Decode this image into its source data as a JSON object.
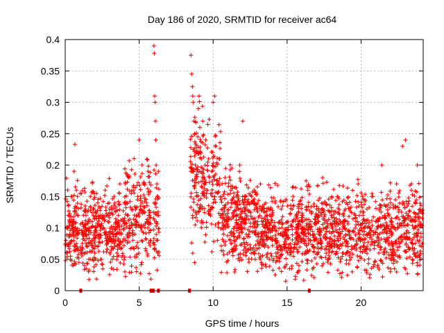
{
  "chart_data": {
    "type": "scatter",
    "title": "Day 186 of 2020, SRMTID for receiver ac64",
    "xlabel": "GPS time / hours",
    "ylabel": "SRMTID / TECUs",
    "xlim": [
      0,
      24.2
    ],
    "ylim": [
      0,
      0.4
    ],
    "x_ticks": [
      0,
      5,
      10,
      15,
      20
    ],
    "x_tick_labels": [
      "0",
      "5",
      "10",
      "15",
      "20"
    ],
    "y_ticks": [
      0,
      0.05,
      0.1,
      0.15,
      0.2,
      0.25,
      0.3,
      0.35,
      0.4
    ],
    "y_tick_labels": [
      "0",
      "0.05",
      "0.1",
      "0.15",
      "0.2",
      "0.25",
      "0.3",
      "0.35",
      "0.4"
    ],
    "grid": true,
    "marker": "+",
    "color": "#ff0000",
    "series": [
      {
        "name": "SRMTID",
        "description_points": [
          [
            0.05,
            0.08
          ],
          [
            0.1,
            0.1
          ],
          [
            0.15,
            0.06
          ],
          [
            0.2,
            0.12
          ],
          [
            0.25,
            0.07
          ],
          [
            0.3,
            0.09
          ],
          [
            0.35,
            0.05
          ],
          [
            0.4,
            0.15
          ],
          [
            0.45,
            0.08
          ],
          [
            0.5,
            0.11
          ],
          [
            0.55,
            0.04
          ],
          [
            0.6,
            0.19
          ],
          [
            0.65,
            0.233
          ],
          [
            0.7,
            0.1
          ],
          [
            0.75,
            0.16
          ],
          [
            0.8,
            0.07
          ],
          [
            0.85,
            0.12
          ],
          [
            0.9,
            0.09
          ],
          [
            1.1,
            0.06
          ],
          [
            1.2,
            0.09
          ],
          [
            1.3,
            0.04
          ],
          [
            1.4,
            0.12
          ],
          [
            1.5,
            0.07
          ],
          [
            1.6,
            0.1
          ],
          [
            1.7,
            0.15
          ],
          [
            1.8,
            0.08
          ],
          [
            1.9,
            0.13
          ],
          [
            2.0,
            0.06
          ],
          [
            2.1,
            0.1
          ],
          [
            2.2,
            0.14
          ],
          [
            2.3,
            0.09
          ],
          [
            2.4,
            0.05
          ],
          [
            2.5,
            0.12
          ],
          [
            2.6,
            0.1
          ],
          [
            2.7,
            0.16
          ],
          [
            2.8,
            0.08
          ],
          [
            2.9,
            0.11
          ],
          [
            3.0,
            0.13
          ],
          [
            3.1,
            0.07
          ],
          [
            3.2,
            0.09
          ],
          [
            3.3,
            0.15
          ],
          [
            3.4,
            0.1
          ],
          [
            3.5,
            0.06
          ],
          [
            3.6,
            0.12
          ],
          [
            3.7,
            0.17
          ],
          [
            3.8,
            0.09
          ],
          [
            3.9,
            0.11
          ],
          [
            4.0,
            0.14
          ],
          [
            4.1,
            0.08
          ],
          [
            4.2,
            0.12
          ],
          [
            4.3,
            0.18
          ],
          [
            4.4,
            0.1
          ],
          [
            4.5,
            0.13
          ],
          [
            4.6,
            0.16
          ],
          [
            4.7,
            0.09
          ],
          [
            4.8,
            0.11
          ],
          [
            4.9,
            0.15
          ],
          [
            5.0,
            0.24
          ],
          [
            5.1,
            0.13
          ],
          [
            5.2,
            0.2
          ],
          [
            5.3,
            0.17
          ],
          [
            5.4,
            0.1
          ],
          [
            5.5,
            0.14
          ],
          [
            5.6,
            0.19
          ],
          [
            5.7,
            0.12
          ],
          [
            5.75,
            0.08
          ],
          [
            6.0,
            0.39
          ],
          [
            6.02,
            0.378
          ],
          [
            6.05,
            0.31
          ],
          [
            6.08,
            0.3
          ],
          [
            6.1,
            0.27
          ],
          [
            6.12,
            0.24
          ],
          [
            6.15,
            0.2
          ],
          [
            6.2,
            0.17
          ],
          [
            6.25,
            0.15
          ],
          [
            6.3,
            0.19
          ],
          [
            8.5,
            0.375
          ],
          [
            8.55,
            0.345
          ],
          [
            8.6,
            0.325
          ],
          [
            8.62,
            0.31
          ],
          [
            8.65,
            0.3
          ],
          [
            8.7,
            0.27
          ],
          [
            8.75,
            0.25
          ],
          [
            8.8,
            0.2
          ],
          [
            8.85,
            0.18
          ],
          [
            8.9,
            0.15
          ],
          [
            8.95,
            0.22
          ],
          [
            9.0,
            0.29
          ],
          [
            9.05,
            0.31
          ],
          [
            9.1,
            0.26
          ],
          [
            9.2,
            0.21
          ],
          [
            9.3,
            0.27
          ],
          [
            9.4,
            0.18
          ],
          [
            9.5,
            0.24
          ],
          [
            9.6,
            0.16
          ],
          [
            9.7,
            0.21
          ],
          [
            9.8,
            0.13
          ],
          [
            9.9,
            0.19
          ],
          [
            10.0,
            0.3
          ],
          [
            10.1,
            0.31
          ],
          [
            10.2,
            0.23
          ],
          [
            10.3,
            0.17
          ],
          [
            10.4,
            0.21
          ],
          [
            10.5,
            0.12
          ],
          [
            10.6,
            0.15
          ],
          [
            10.7,
            0.09
          ],
          [
            10.8,
            0.18
          ],
          [
            10.9,
            0.11
          ],
          [
            11.0,
            0.14
          ],
          [
            11.2,
            0.16
          ],
          [
            11.4,
            0.08
          ],
          [
            11.6,
            0.12
          ],
          [
            11.8,
            0.2
          ],
          [
            12.0,
            0.27
          ],
          [
            12.2,
            0.13
          ],
          [
            12.4,
            0.09
          ],
          [
            12.6,
            0.15
          ],
          [
            12.8,
            0.06
          ],
          [
            13.0,
            0.11
          ],
          [
            13.2,
            0.17
          ],
          [
            13.4,
            0.08
          ],
          [
            13.6,
            0.12
          ],
          [
            13.8,
            0.05
          ],
          [
            14.0,
            0.1
          ],
          [
            14.2,
            0.14
          ],
          [
            14.4,
            0.07
          ],
          [
            14.6,
            0.13
          ],
          [
            14.8,
            0.09
          ],
          [
            15.0,
            0.11
          ],
          [
            15.2,
            0.06
          ],
          [
            15.4,
            0.15
          ],
          [
            15.6,
            0.1
          ],
          [
            15.8,
            0.04
          ],
          [
            16.0,
            0.12
          ],
          [
            16.2,
            0.08
          ],
          [
            16.4,
            0.16
          ],
          [
            16.6,
            0.11
          ],
          [
            16.8,
            0.07
          ],
          [
            17.0,
            0.13
          ],
          [
            17.2,
            0.09
          ],
          [
            17.4,
            0.18
          ],
          [
            17.6,
            0.1
          ],
          [
            17.8,
            0.05
          ],
          [
            18.0,
            0.12
          ],
          [
            18.2,
            0.08
          ],
          [
            18.4,
            0.15
          ],
          [
            18.6,
            0.11
          ],
          [
            18.8,
            0.06
          ],
          [
            19.0,
            0.14
          ],
          [
            19.2,
            0.09
          ],
          [
            19.4,
            0.03
          ],
          [
            19.6,
            0.12
          ],
          [
            19.8,
            0.17
          ],
          [
            20.0,
            0.1
          ],
          [
            20.2,
            0.07
          ],
          [
            20.4,
            0.13
          ],
          [
            20.6,
            0.09
          ],
          [
            20.8,
            0.15
          ],
          [
            21.0,
            0.11
          ],
          [
            21.2,
            0.06
          ],
          [
            21.4,
            0.2
          ],
          [
            21.6,
            0.12
          ],
          [
            21.8,
            0.08
          ],
          [
            22.0,
            0.14
          ],
          [
            22.2,
            0.1
          ],
          [
            22.4,
            0.17
          ],
          [
            22.6,
            0.07
          ],
          [
            22.8,
            0.23
          ],
          [
            23.0,
            0.24
          ],
          [
            23.2,
            0.12
          ],
          [
            23.4,
            0.16
          ],
          [
            23.6,
            0.09
          ],
          [
            23.8,
            0.2
          ],
          [
            24.0,
            0.13
          ],
          [
            24.1,
            0.07
          ]
        ]
      }
    ],
    "gap_markers_x": [
      1.05,
      5.8,
      5.85,
      5.9,
      5.95,
      6.3,
      8.4,
      16.5
    ]
  }
}
